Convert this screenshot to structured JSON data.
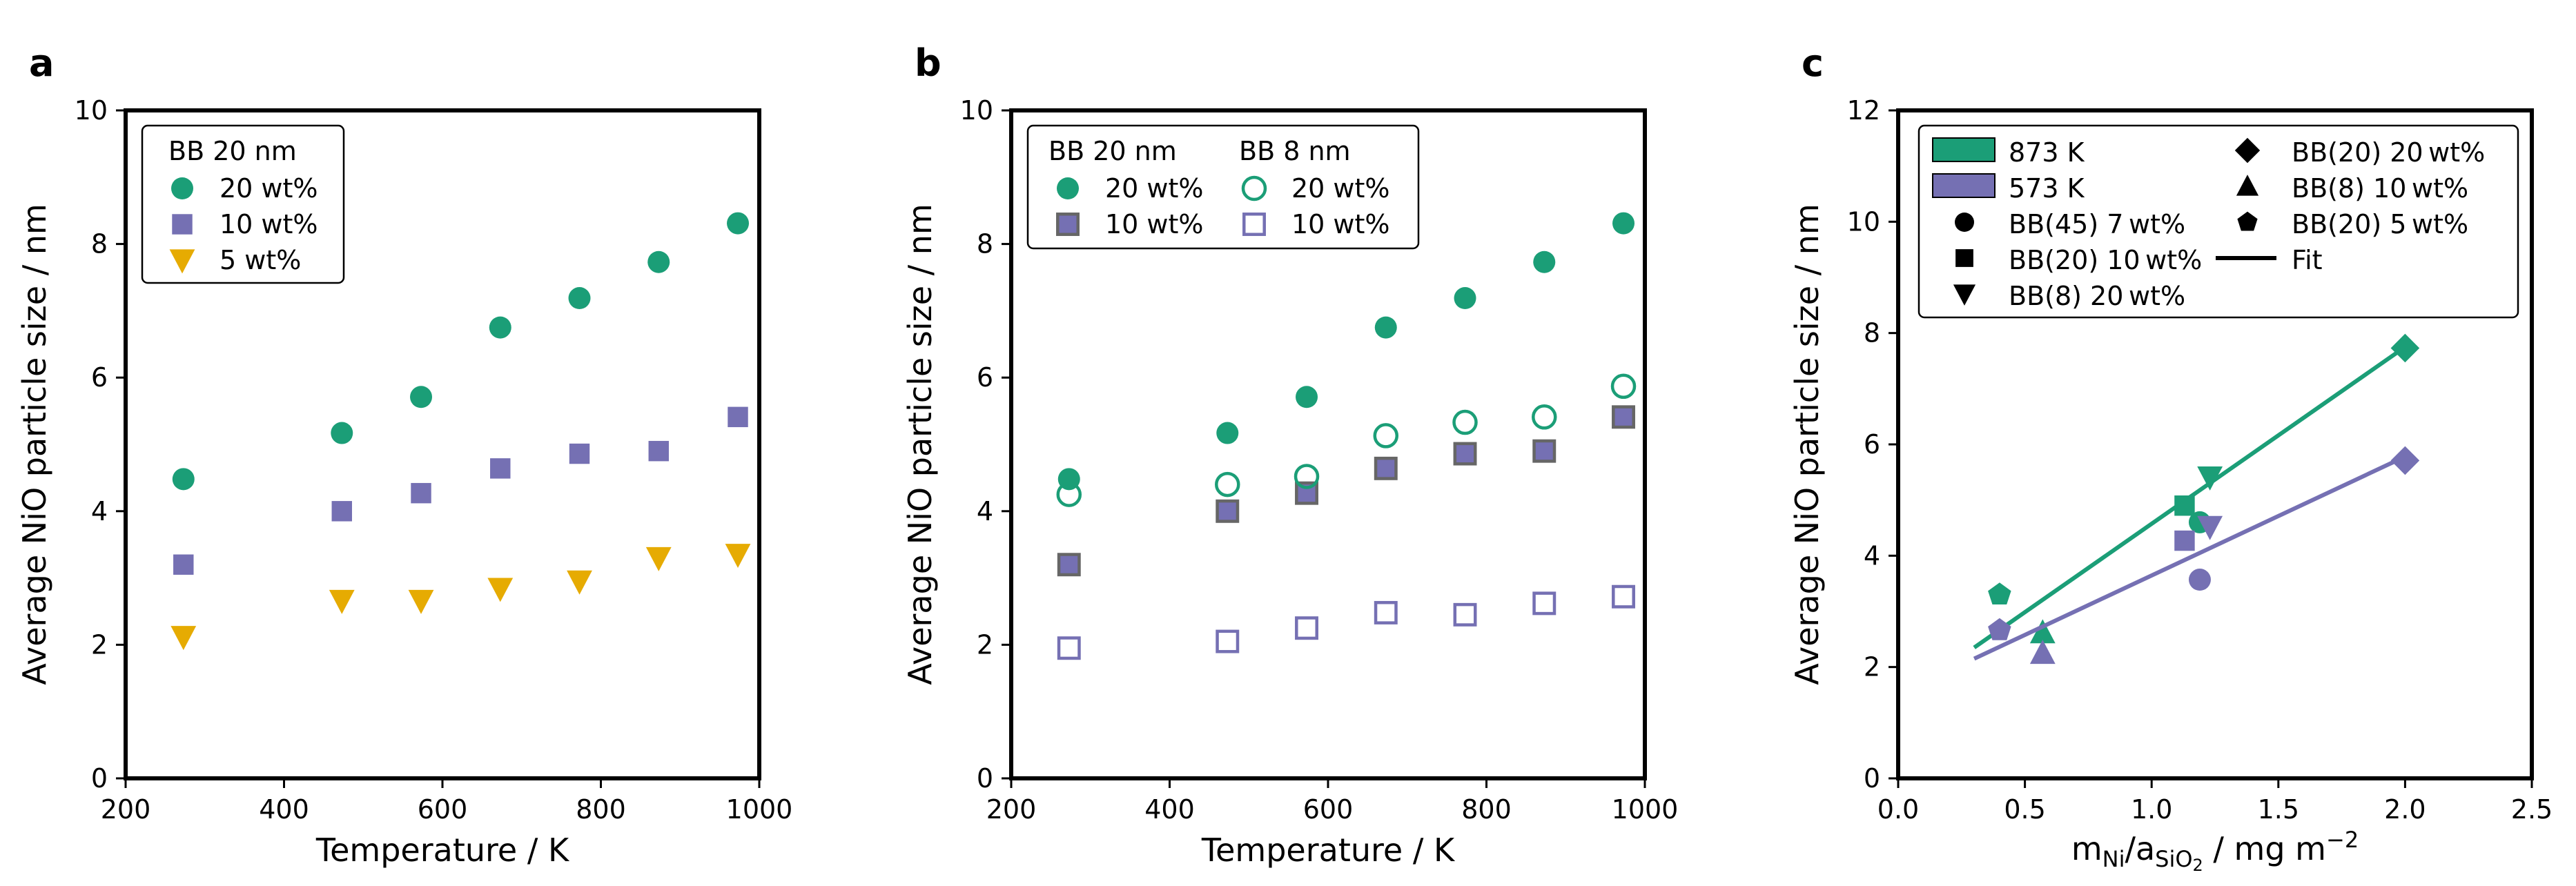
{
  "colors": {
    "green": "#1b9e77",
    "purple": "#7570b3",
    "gold": "#e6ab02",
    "grey": "#666666",
    "black": "#000000"
  },
  "chart_data": [
    {
      "panel": "a",
      "type": "scatter",
      "xlabel": "Temperature / K",
      "ylabel": "Average NiO particle size / nm",
      "xlim": [
        200,
        1000
      ],
      "ylim": [
        0,
        10
      ],
      "xticks": [
        "200",
        "400",
        "600",
        "800",
        "1000"
      ],
      "yticks": [
        "0",
        "2",
        "4",
        "6",
        "8",
        "10"
      ],
      "legend": {
        "title": "BB 20 nm",
        "position": "top-left"
      },
      "series": [
        {
          "name": "20 wt%",
          "marker": "circle",
          "color": "green",
          "filled": true,
          "x": [
            273,
            473,
            573,
            673,
            773,
            873,
            973
          ],
          "y": [
            4.48,
            5.17,
            5.71,
            6.75,
            7.19,
            7.73,
            8.31
          ]
        },
        {
          "name": "10 wt%",
          "marker": "square",
          "color": "purple",
          "filled": true,
          "x": [
            273,
            473,
            573,
            673,
            773,
            873,
            973
          ],
          "y": [
            3.2,
            4.0,
            4.27,
            4.64,
            4.86,
            4.9,
            5.41
          ]
        },
        {
          "name": "5 wt%",
          "marker": "triangle-down",
          "color": "gold",
          "filled": true,
          "x": [
            273,
            473,
            573,
            673,
            773,
            873,
            973
          ],
          "y": [
            2.12,
            2.66,
            2.66,
            2.84,
            2.95,
            3.3,
            3.35
          ]
        }
      ]
    },
    {
      "panel": "b",
      "type": "scatter",
      "xlabel": "Temperature / K",
      "ylabel": "Average NiO particle size / nm",
      "xlim": [
        200,
        1000
      ],
      "ylim": [
        0,
        10
      ],
      "xticks": [
        "200",
        "400",
        "600",
        "800",
        "1000"
      ],
      "yticks": [
        "0",
        "2",
        "4",
        "6",
        "8",
        "10"
      ],
      "legend": {
        "titles": [
          "BB 20 nm",
          "BB 8 nm"
        ],
        "position": "top-left"
      },
      "series": [
        {
          "name": "20 wt%",
          "group": "BB 20 nm",
          "marker": "circle",
          "color": "green",
          "filled": true,
          "x": [
            273,
            473,
            573,
            673,
            773,
            873,
            973
          ],
          "y": [
            4.48,
            5.17,
            5.71,
            6.75,
            7.19,
            7.73,
            8.31
          ]
        },
        {
          "name": "10 wt%",
          "group": "BB 20 nm",
          "marker": "square",
          "color": "purple",
          "filled": true,
          "edge": "grey",
          "x": [
            273,
            473,
            573,
            673,
            773,
            873,
            973
          ],
          "y": [
            3.2,
            4.0,
            4.27,
            4.64,
            4.86,
            4.9,
            5.41
          ]
        },
        {
          "name": "20 wt%",
          "group": "BB 8 nm",
          "marker": "circle",
          "color": "green",
          "filled": false,
          "x": [
            273,
            473,
            573,
            673,
            773,
            873,
            973
          ],
          "y": [
            4.25,
            4.4,
            4.52,
            5.13,
            5.33,
            5.41,
            5.87
          ]
        },
        {
          "name": "10 wt%",
          "group": "BB 8 nm",
          "marker": "square",
          "color": "purple",
          "filled": false,
          "x": [
            273,
            473,
            573,
            673,
            773,
            873,
            973
          ],
          "y": [
            1.95,
            2.05,
            2.25,
            2.48,
            2.45,
            2.62,
            2.72
          ]
        }
      ]
    },
    {
      "panel": "c",
      "type": "scatter",
      "xlabel_parts": {
        "m": "m",
        "m_sub": "Ni",
        "slash": "/a",
        "a_sub": "SiO",
        "a_subsub": "2",
        "units": " / mg m",
        "exp": "−2"
      },
      "ylabel": "Average NiO particle size / nm",
      "xlim": [
        0.0,
        2.5
      ],
      "ylim": [
        0,
        12
      ],
      "xticks": [
        "0.0",
        "0.5",
        "1.0",
        "1.5",
        "2.0",
        "2.5"
      ],
      "yticks": [
        "0",
        "2",
        "4",
        "6",
        "8",
        "10",
        "12"
      ],
      "legend": {
        "position": "top-right",
        "entries": [
          {
            "label": "873 K",
            "kind": "patch",
            "color": "green"
          },
          {
            "label": "573 K",
            "kind": "patch",
            "color": "purple"
          },
          {
            "label": "BB(45) 7 wt%",
            "kind": "marker",
            "marker": "circle"
          },
          {
            "label": "BB(20) 10 wt%",
            "kind": "marker",
            "marker": "square"
          },
          {
            "label": "BB(8) 20 wt%",
            "kind": "marker",
            "marker": "triangle-down"
          },
          {
            "label": "BB(20) 20 wt%",
            "kind": "marker",
            "marker": "diamond"
          },
          {
            "label": "BB(8) 10 wt%",
            "kind": "marker",
            "marker": "triangle-up"
          },
          {
            "label": "BB(20) 5 wt%",
            "kind": "marker",
            "marker": "pentagon"
          },
          {
            "label": "Fit",
            "kind": "line"
          }
        ]
      },
      "series": [
        {
          "name": "873 K",
          "color": "green",
          "points": [
            {
              "marker": "pentagon",
              "x": 0.4,
              "y": 3.3
            },
            {
              "marker": "triangle-up",
              "x": 0.57,
              "y": 2.62
            },
            {
              "marker": "square",
              "x": 1.13,
              "y": 4.9
            },
            {
              "marker": "circle",
              "x": 1.19,
              "y": 4.6
            },
            {
              "marker": "triangle-down",
              "x": 1.23,
              "y": 5.41
            },
            {
              "marker": "diamond",
              "x": 2.0,
              "y": 7.73
            }
          ],
          "fit": {
            "x": [
              0.3,
              2.0
            ],
            "y": [
              2.35,
              7.75
            ]
          }
        },
        {
          "name": "573 K",
          "color": "purple",
          "points": [
            {
              "marker": "pentagon",
              "x": 0.4,
              "y": 2.66
            },
            {
              "marker": "triangle-up",
              "x": 0.57,
              "y": 2.25
            },
            {
              "marker": "square",
              "x": 1.13,
              "y": 4.27
            },
            {
              "marker": "circle",
              "x": 1.19,
              "y": 3.57
            },
            {
              "marker": "triangle-down",
              "x": 1.23,
              "y": 4.52
            },
            {
              "marker": "diamond",
              "x": 2.0,
              "y": 5.71
            }
          ],
          "fit": {
            "x": [
              0.3,
              2.0
            ],
            "y": [
              2.15,
              5.78
            ]
          }
        }
      ]
    }
  ]
}
